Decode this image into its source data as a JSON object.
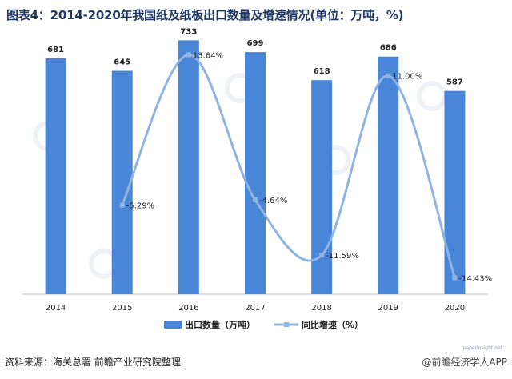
{
  "title": "图表4：2014-2020年我国纸及纸板出口数量及增速情况(单位：万吨，%)",
  "footer": {
    "source": "资料来源：海关总署  前瞻产业研究院整理",
    "app": "@前瞻经济学人APP",
    "url": "paperinsight.net"
  },
  "chart_data": {
    "type": "bar",
    "categories": [
      "2014",
      "2015",
      "2016",
      "2017",
      "2018",
      "2019",
      "2020"
    ],
    "series": [
      {
        "name": "出口数量（万吨）",
        "type": "bar",
        "axis": "left",
        "values": [
          681,
          645,
          733,
          699,
          618,
          686,
          587
        ],
        "labels": [
          "681",
          "645",
          "733",
          "699",
          "618",
          "686",
          "587"
        ],
        "color": "#4a86d8"
      },
      {
        "name": "同比增速（%）",
        "type": "line",
        "axis": "right",
        "smooth": true,
        "values": [
          null,
          -5.29,
          13.64,
          -4.64,
          -11.59,
          11.0,
          -14.43
        ],
        "labels": [
          "",
          "-5.29%",
          "13.64%",
          "-4.64%",
          "-11.59%",
          "11.00%",
          "-14.43%"
        ],
        "color": "#8fb4e3"
      }
    ],
    "ylim_left": [
      0,
      780
    ],
    "ylim_right": [
      -16.5,
      17.5
    ],
    "grid": false,
    "legend_position": "bottom"
  }
}
